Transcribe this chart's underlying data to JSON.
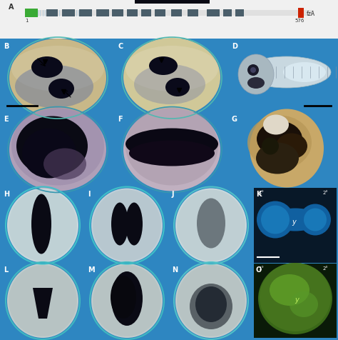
{
  "fig_width": 4.74,
  "fig_height": 4.77,
  "dpi": 100,
  "bg_blue": "#2e86c1",
  "white_bg": "#f2f2f2",
  "panel_A": {
    "bg_color": "#f0f0f0",
    "bar_color": "#e8e8e8",
    "green_color": "#3aaa35",
    "red_color": "#cc2200",
    "dark_color": "#4a5e6a",
    "thin_line_color": "#a8c8dc",
    "label1": "1",
    "label576": "576",
    "labelFzA": "fzA"
  },
  "label_color_white": "#ffffff",
  "label_color_dark": "#222222"
}
